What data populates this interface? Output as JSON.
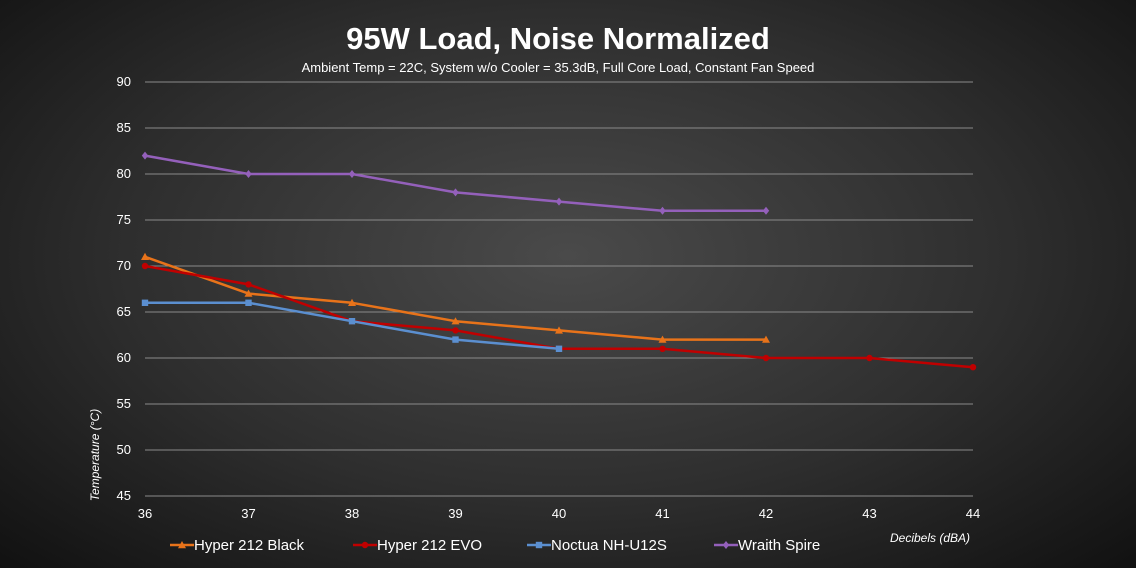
{
  "chart_data": {
    "type": "line",
    "title": "95W Load, Noise Normalized",
    "subtitle": "Ambient Temp = 22C, System w/o Cooler = 35.3dB, Full Core Load, Constant Fan Speed",
    "xlabel": "Decibels (dBA)",
    "ylabel": "Temperature (°C)",
    "xlim": [
      36,
      44
    ],
    "ylim": [
      45,
      90
    ],
    "x_ticks": [
      "36",
      "37",
      "38",
      "39",
      "40",
      "41",
      "42",
      "43",
      "44"
    ],
    "y_ticks": [
      "45",
      "50",
      "55",
      "60",
      "65",
      "70",
      "75",
      "80",
      "85",
      "90"
    ],
    "grid": true,
    "legend_position": "bottom",
    "series": [
      {
        "name": "Hyper 212 Black",
        "color": "#e8731a",
        "marker": "triangle",
        "x": [
          36,
          37,
          38,
          39,
          40,
          41,
          42
        ],
        "values": [
          71,
          67,
          66,
          64,
          63,
          62,
          62
        ]
      },
      {
        "name": "Hyper 212 EVO",
        "color": "#c00000",
        "marker": "circle",
        "x": [
          36,
          37,
          38,
          39,
          40,
          41,
          42,
          43,
          44
        ],
        "values": [
          70,
          68,
          64,
          63,
          61,
          61,
          60,
          60,
          59
        ]
      },
      {
        "name": "Noctua NH-U12S",
        "color": "#5b8fd0",
        "marker": "square",
        "x": [
          36,
          37,
          38,
          39,
          40
        ],
        "values": [
          66,
          66,
          64,
          62,
          61
        ]
      },
      {
        "name": "Wraith Spire",
        "color": "#9460bb",
        "marker": "diamond",
        "x": [
          36,
          37,
          38,
          39,
          40,
          41,
          42
        ],
        "values": [
          82,
          80,
          80,
          78,
          77,
          76,
          76
        ]
      }
    ]
  }
}
